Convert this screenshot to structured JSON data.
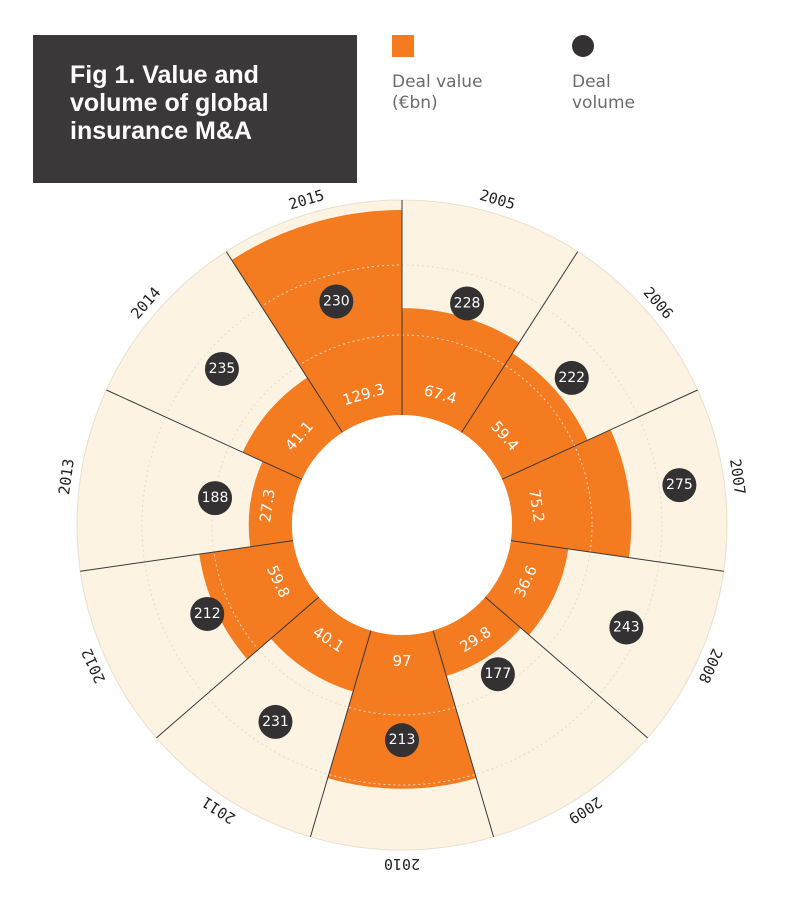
{
  "title": "Fig 1. Value and volume of global insurance M&A",
  "legend": [
    {
      "label": "Deal value\n(€bn)",
      "color": "#f47b20",
      "shape": "square"
    },
    {
      "label": "Deal\nvolume",
      "color": "#333132",
      "shape": "circle"
    }
  ],
  "colors": {
    "value": "#f47b20",
    "background_ring": "#fdf3e3",
    "volume_dot": "#333132",
    "title_bg": "#3a3839"
  },
  "chart_data": {
    "type": "radial-bar",
    "title": "Fig 1. Value and volume of global insurance M&A",
    "categories": [
      "2005",
      "2006",
      "2007",
      "2008",
      "2009",
      "2010",
      "2011",
      "2012",
      "2013",
      "2014",
      "2015"
    ],
    "series": [
      {
        "name": "Deal value (€bn)",
        "values": [
          67.4,
          59.4,
          75.2,
          36.6,
          29.8,
          97,
          40.1,
          59.8,
          27.3,
          41.1,
          129.3
        ]
      },
      {
        "name": "Deal volume",
        "values": [
          228,
          222,
          275,
          243,
          177,
          213,
          231,
          212,
          188,
          235,
          230
        ]
      }
    ],
    "value_labels": [
      "67.4",
      "59.4",
      "75.2",
      "36.6",
      "29.8",
      "97",
      "40.1",
      "59.8",
      "27.3",
      "41.1",
      "129.3"
    ],
    "volume_labels": [
      "228",
      "222",
      "275",
      "243",
      "177",
      "213",
      "231",
      "212",
      "188",
      "235",
      "230"
    ]
  }
}
